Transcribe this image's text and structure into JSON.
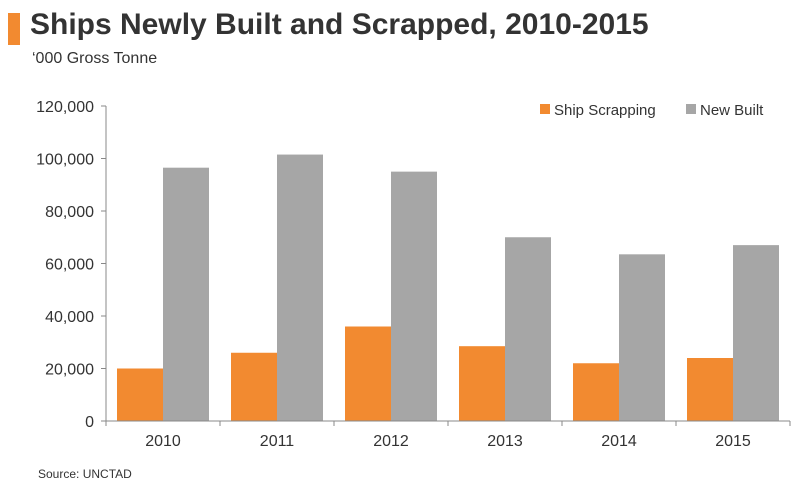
{
  "title": "Ships Newly Built and Scrapped, 2010-2015",
  "subtitle": "‘000 Gross Tonne",
  "source": "Source: UNCTAD",
  "colors": {
    "accent": "#f28a30",
    "ship_scrapping": "#f28a30",
    "new_built": "#a6a6a6",
    "axis": "#888888"
  },
  "chart_data": {
    "type": "bar",
    "categories": [
      "2010",
      "2011",
      "2012",
      "2013",
      "2014",
      "2015"
    ],
    "series": [
      {
        "name": "Ship Scrapping",
        "values": [
          20000,
          26000,
          36000,
          28500,
          22000,
          24000
        ]
      },
      {
        "name": "New Built",
        "values": [
          96500,
          101500,
          95000,
          70000,
          63500,
          67000
        ]
      }
    ],
    "ylim": [
      0,
      120000
    ],
    "yticks": [
      0,
      20000,
      40000,
      60000,
      80000,
      100000,
      120000
    ],
    "ytick_labels": [
      "0",
      "20,000",
      "40,000",
      "60,000",
      "80,000",
      "100,000",
      "120,000"
    ],
    "grid": false,
    "legend_position": "top-right"
  }
}
